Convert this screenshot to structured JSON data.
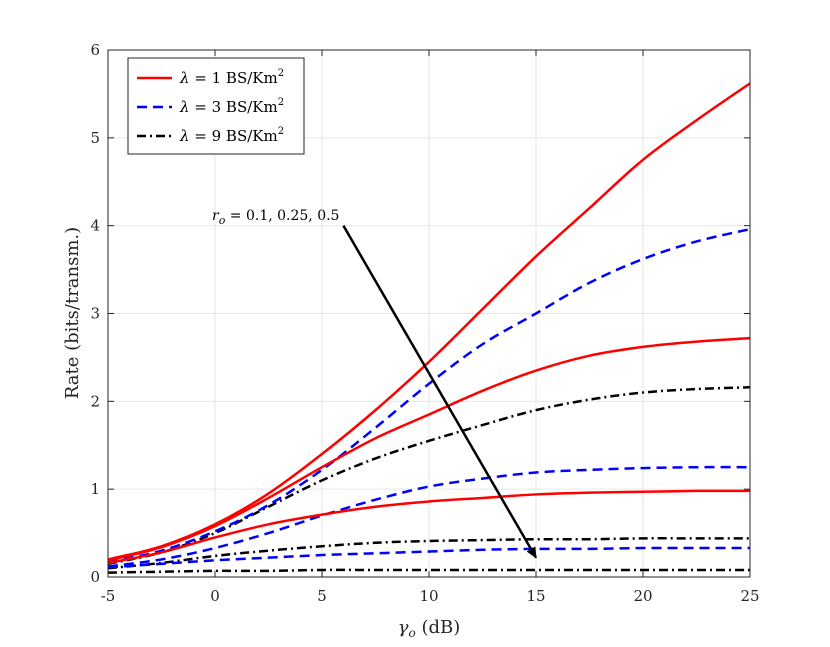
{
  "chart_data": {
    "type": "line",
    "title": "",
    "xlabel": "γo (dB)",
    "ylabel": "Rate (bits/transm.)",
    "xlim": [
      -5,
      25
    ],
    "ylim": [
      0,
      6
    ],
    "xticks": [
      -5,
      0,
      5,
      10,
      15,
      20,
      25
    ],
    "yticks": [
      0,
      1,
      2,
      3,
      4,
      5,
      6
    ],
    "grid": true,
    "legend_position": "top-left",
    "legend": [
      {
        "name": "λ = 1 BS/Km2",
        "label": "λ = 1 BS/Km",
        "sup": "2",
        "color": "#ff0000",
        "style": "solid"
      },
      {
        "name": "λ = 3 BS/Km2",
        "label": "λ = 3 BS/Km",
        "sup": "2",
        "color": "#0000ff",
        "style": "dashed"
      },
      {
        "name": "λ = 9 BS/Km2",
        "label": "λ = 9 BS/Km",
        "sup": "2",
        "color": "#000000",
        "style": "dashdot"
      }
    ],
    "annotation": {
      "text": "ro = 0.1, 0.25, 0.5",
      "label_main": "r",
      "label_sub": "o",
      "label_rest": " = 0.1, 0.25, 0.5",
      "arrow_from": [
        6.0,
        4.0
      ],
      "arrow_to": [
        15.0,
        0.22
      ]
    },
    "x": [
      -5,
      -2.5,
      0,
      2.5,
      5,
      7.5,
      10,
      12.5,
      15,
      17.5,
      20,
      22.5,
      25
    ],
    "series": [
      {
        "name": "λ=1, ro=0.1",
        "group": 0,
        "color": "#ff0000",
        "style": "solid",
        "values": [
          0.2,
          0.35,
          0.6,
          0.95,
          1.4,
          1.9,
          2.45,
          3.05,
          3.65,
          4.2,
          4.75,
          5.2,
          5.62
        ]
      },
      {
        "name": "λ=1, ro=0.25",
        "group": 0,
        "color": "#ff0000",
        "style": "solid",
        "values": [
          0.19,
          0.34,
          0.58,
          0.9,
          1.25,
          1.58,
          1.85,
          2.12,
          2.35,
          2.52,
          2.62,
          2.68,
          2.72
        ]
      },
      {
        "name": "λ=1, ro=0.5",
        "group": 0,
        "color": "#ff0000",
        "style": "solid",
        "values": [
          0.16,
          0.28,
          0.45,
          0.6,
          0.71,
          0.8,
          0.86,
          0.9,
          0.94,
          0.96,
          0.97,
          0.98,
          0.98
        ]
      },
      {
        "name": "λ=3, ro=0.1",
        "group": 1,
        "color": "#0000ff",
        "style": "dashed",
        "values": [
          0.17,
          0.3,
          0.52,
          0.82,
          1.22,
          1.7,
          2.2,
          2.65,
          3.0,
          3.35,
          3.62,
          3.82,
          3.96
        ]
      },
      {
        "name": "λ=3, ro=0.25",
        "group": 1,
        "color": "#0000ff",
        "style": "dashed",
        "values": [
          0.12,
          0.2,
          0.33,
          0.5,
          0.7,
          0.88,
          1.03,
          1.12,
          1.19,
          1.22,
          1.24,
          1.25,
          1.25
        ]
      },
      {
        "name": "λ=3, ro=0.5",
        "group": 1,
        "color": "#0000ff",
        "style": "dashed",
        "values": [
          0.11,
          0.15,
          0.19,
          0.22,
          0.25,
          0.27,
          0.29,
          0.31,
          0.32,
          0.32,
          0.33,
          0.33,
          0.33
        ]
      },
      {
        "name": "λ=9, ro=0.1",
        "group": 2,
        "color": "#000000",
        "style": "dashdot",
        "values": [
          0.15,
          0.28,
          0.5,
          0.8,
          1.1,
          1.35,
          1.55,
          1.73,
          1.9,
          2.02,
          2.1,
          2.14,
          2.16
        ]
      },
      {
        "name": "λ=9, ro=0.25",
        "group": 2,
        "color": "#000000",
        "style": "dashdot",
        "values": [
          0.1,
          0.16,
          0.24,
          0.3,
          0.35,
          0.39,
          0.41,
          0.42,
          0.43,
          0.43,
          0.44,
          0.44,
          0.44
        ]
      },
      {
        "name": "λ=9, ro=0.5",
        "group": 2,
        "color": "#000000",
        "style": "dashdot",
        "values": [
          0.05,
          0.06,
          0.07,
          0.07,
          0.08,
          0.08,
          0.08,
          0.08,
          0.08,
          0.08,
          0.08,
          0.08,
          0.08
        ]
      }
    ]
  }
}
